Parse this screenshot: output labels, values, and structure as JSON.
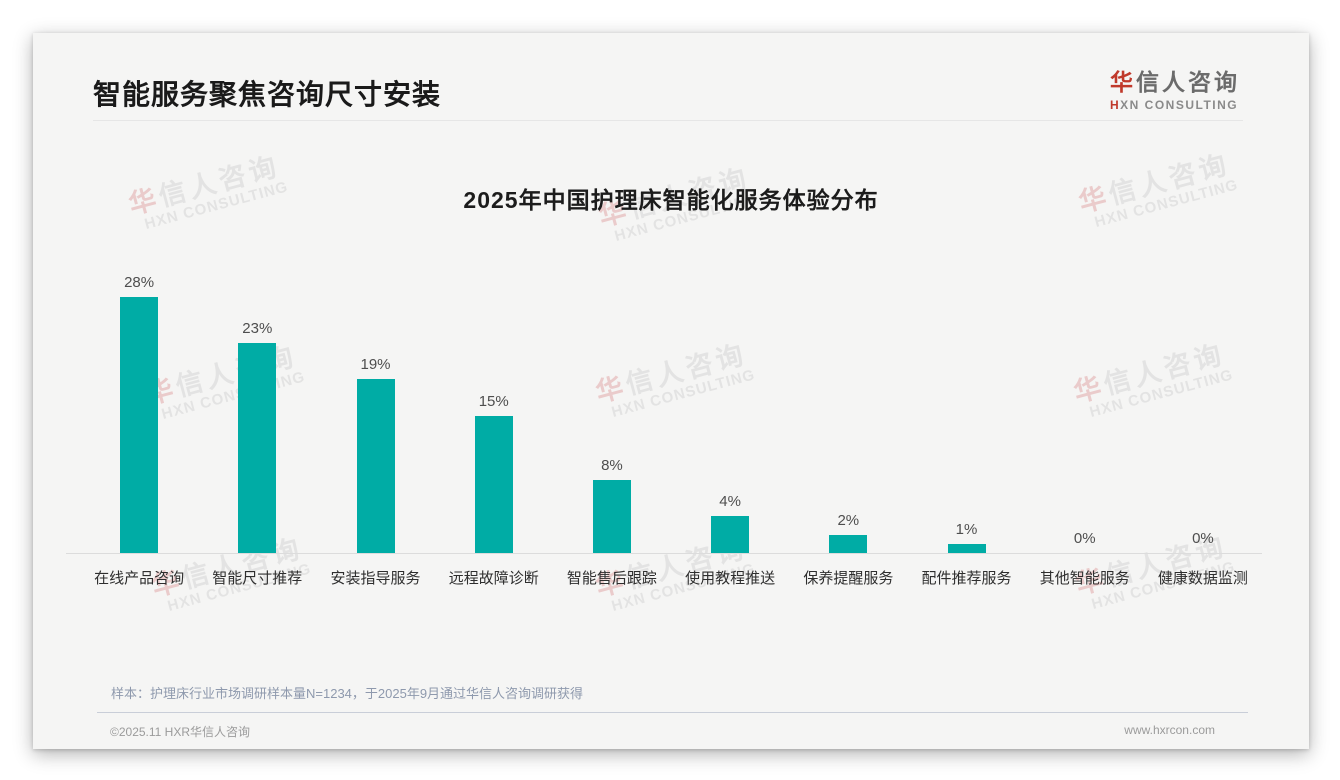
{
  "page": {
    "title": "智能服务聚焦咨询尺寸安装",
    "sample_note": "样本：护理床行业市场调研样本量N=1234，于2025年9月通过华信人咨询调研获得",
    "footer_left": "©2025.11 HXR华信人咨询",
    "footer_right": "www.hxrcon.com"
  },
  "logo": {
    "cn_accent": "华",
    "cn_rest": "信人咨询",
    "en_accent": "H",
    "en_rest": "XN CONSULTING"
  },
  "watermark": {
    "cn_accent": "华",
    "cn_rest": "信人咨询",
    "en": "HXN CONSULTING"
  },
  "colors": {
    "bar_teal": "#00aca5",
    "accent_red": "#c0392b"
  },
  "chart_data": {
    "type": "bar",
    "title": "2025年中国护理床智能化服务体验分布",
    "categories": [
      "在线产品咨询",
      "智能尺寸推荐",
      "安装指导服务",
      "远程故障诊断",
      "智能售后跟踪",
      "使用教程推送",
      "保养提醒服务",
      "配件推荐服务",
      "其他智能服务",
      "健康数据监测"
    ],
    "values": [
      28,
      23,
      19,
      15,
      8,
      4,
      2,
      1,
      0,
      0
    ],
    "unit": "%",
    "xlabel": "",
    "ylabel": "",
    "ylim": [
      0,
      30
    ],
    "grid": false,
    "legend_position": "none",
    "value_labels_shown": true
  }
}
